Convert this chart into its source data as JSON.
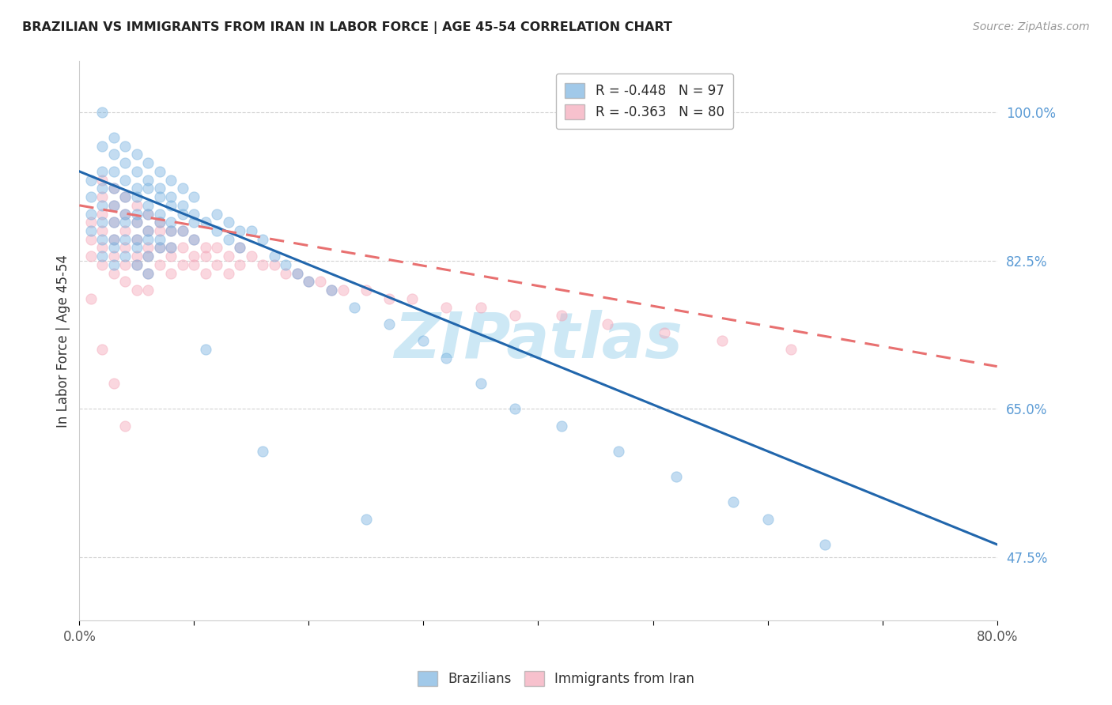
{
  "title": "BRAZILIAN VS IMMIGRANTS FROM IRAN IN LABOR FORCE | AGE 45-54 CORRELATION CHART",
  "source": "Source: ZipAtlas.com",
  "ylabel": "In Labor Force | Age 45-54",
  "ytick_labels": [
    "47.5%",
    "65.0%",
    "82.5%",
    "100.0%"
  ],
  "ytick_values": [
    0.475,
    0.65,
    0.825,
    1.0
  ],
  "xlim": [
    0.0,
    0.8
  ],
  "ylim": [
    0.4,
    1.06
  ],
  "watermark": "ZIPatlas",
  "blue_scatter_x": [
    0.01,
    0.01,
    0.01,
    0.01,
    0.02,
    0.02,
    0.02,
    0.02,
    0.02,
    0.02,
    0.02,
    0.02,
    0.03,
    0.03,
    0.03,
    0.03,
    0.03,
    0.03,
    0.03,
    0.03,
    0.03,
    0.04,
    0.04,
    0.04,
    0.04,
    0.04,
    0.04,
    0.04,
    0.04,
    0.05,
    0.05,
    0.05,
    0.05,
    0.05,
    0.05,
    0.05,
    0.05,
    0.05,
    0.06,
    0.06,
    0.06,
    0.06,
    0.06,
    0.06,
    0.06,
    0.06,
    0.06,
    0.07,
    0.07,
    0.07,
    0.07,
    0.07,
    0.07,
    0.07,
    0.08,
    0.08,
    0.08,
    0.08,
    0.08,
    0.08,
    0.09,
    0.09,
    0.09,
    0.09,
    0.1,
    0.1,
    0.1,
    0.1,
    0.11,
    0.11,
    0.12,
    0.12,
    0.13,
    0.13,
    0.14,
    0.14,
    0.15,
    0.16,
    0.16,
    0.17,
    0.18,
    0.19,
    0.2,
    0.22,
    0.24,
    0.25,
    0.27,
    0.3,
    0.32,
    0.35,
    0.38,
    0.42,
    0.47,
    0.52,
    0.57,
    0.6,
    0.65
  ],
  "blue_scatter_y": [
    0.92,
    0.9,
    0.88,
    0.86,
    1.0,
    0.96,
    0.93,
    0.91,
    0.89,
    0.87,
    0.85,
    0.83,
    0.97,
    0.95,
    0.93,
    0.91,
    0.89,
    0.87,
    0.85,
    0.84,
    0.82,
    0.96,
    0.94,
    0.92,
    0.9,
    0.88,
    0.87,
    0.85,
    0.83,
    0.95,
    0.93,
    0.91,
    0.9,
    0.88,
    0.87,
    0.85,
    0.84,
    0.82,
    0.94,
    0.92,
    0.91,
    0.89,
    0.88,
    0.86,
    0.85,
    0.83,
    0.81,
    0.93,
    0.91,
    0.9,
    0.88,
    0.87,
    0.85,
    0.84,
    0.92,
    0.9,
    0.89,
    0.87,
    0.86,
    0.84,
    0.91,
    0.89,
    0.88,
    0.86,
    0.9,
    0.88,
    0.87,
    0.85,
    0.87,
    0.72,
    0.88,
    0.86,
    0.87,
    0.85,
    0.86,
    0.84,
    0.86,
    0.85,
    0.6,
    0.83,
    0.82,
    0.81,
    0.8,
    0.79,
    0.77,
    0.52,
    0.75,
    0.73,
    0.71,
    0.68,
    0.65,
    0.63,
    0.6,
    0.57,
    0.54,
    0.52,
    0.49
  ],
  "pink_scatter_x": [
    0.01,
    0.01,
    0.01,
    0.01,
    0.02,
    0.02,
    0.02,
    0.02,
    0.02,
    0.02,
    0.02,
    0.03,
    0.03,
    0.03,
    0.03,
    0.03,
    0.03,
    0.03,
    0.04,
    0.04,
    0.04,
    0.04,
    0.04,
    0.04,
    0.04,
    0.05,
    0.05,
    0.05,
    0.05,
    0.05,
    0.05,
    0.06,
    0.06,
    0.06,
    0.06,
    0.06,
    0.06,
    0.07,
    0.07,
    0.07,
    0.07,
    0.08,
    0.08,
    0.08,
    0.08,
    0.09,
    0.09,
    0.09,
    0.1,
    0.1,
    0.1,
    0.11,
    0.11,
    0.11,
    0.12,
    0.12,
    0.13,
    0.13,
    0.14,
    0.14,
    0.15,
    0.16,
    0.17,
    0.18,
    0.19,
    0.2,
    0.21,
    0.22,
    0.23,
    0.25,
    0.27,
    0.29,
    0.32,
    0.35,
    0.38,
    0.42,
    0.46,
    0.51,
    0.56,
    0.62
  ],
  "pink_scatter_y": [
    0.87,
    0.85,
    0.83,
    0.78,
    0.92,
    0.9,
    0.88,
    0.86,
    0.84,
    0.82,
    0.72,
    0.91,
    0.89,
    0.87,
    0.85,
    0.83,
    0.81,
    0.68,
    0.9,
    0.88,
    0.86,
    0.84,
    0.82,
    0.8,
    0.63,
    0.89,
    0.87,
    0.85,
    0.83,
    0.82,
    0.79,
    0.88,
    0.86,
    0.84,
    0.83,
    0.81,
    0.79,
    0.87,
    0.86,
    0.84,
    0.82,
    0.86,
    0.84,
    0.83,
    0.81,
    0.86,
    0.84,
    0.82,
    0.85,
    0.83,
    0.82,
    0.84,
    0.83,
    0.81,
    0.84,
    0.82,
    0.83,
    0.81,
    0.84,
    0.82,
    0.83,
    0.82,
    0.82,
    0.81,
    0.81,
    0.8,
    0.8,
    0.79,
    0.79,
    0.79,
    0.78,
    0.78,
    0.77,
    0.77,
    0.76,
    0.76,
    0.75,
    0.74,
    0.73,
    0.72
  ],
  "blue_line_x": [
    0.0,
    0.8
  ],
  "blue_line_y": [
    0.93,
    0.49
  ],
  "pink_line_x": [
    0.0,
    0.8
  ],
  "pink_line_y": [
    0.89,
    0.7
  ],
  "blue_color": "#7ab3e0",
  "pink_color": "#f4a7b9",
  "blue_line_color": "#2166ac",
  "pink_line_color": "#e87070",
  "background_color": "#ffffff",
  "grid_color": "#c8c8c8",
  "title_color": "#222222",
  "axis_label_color": "#333333",
  "tick_color_y": "#5b9bd5",
  "tick_color_x": "#555555",
  "watermark_color": "#cde8f5",
  "marker_size": 90,
  "marker_alpha": 0.45,
  "line_width": 2.2
}
